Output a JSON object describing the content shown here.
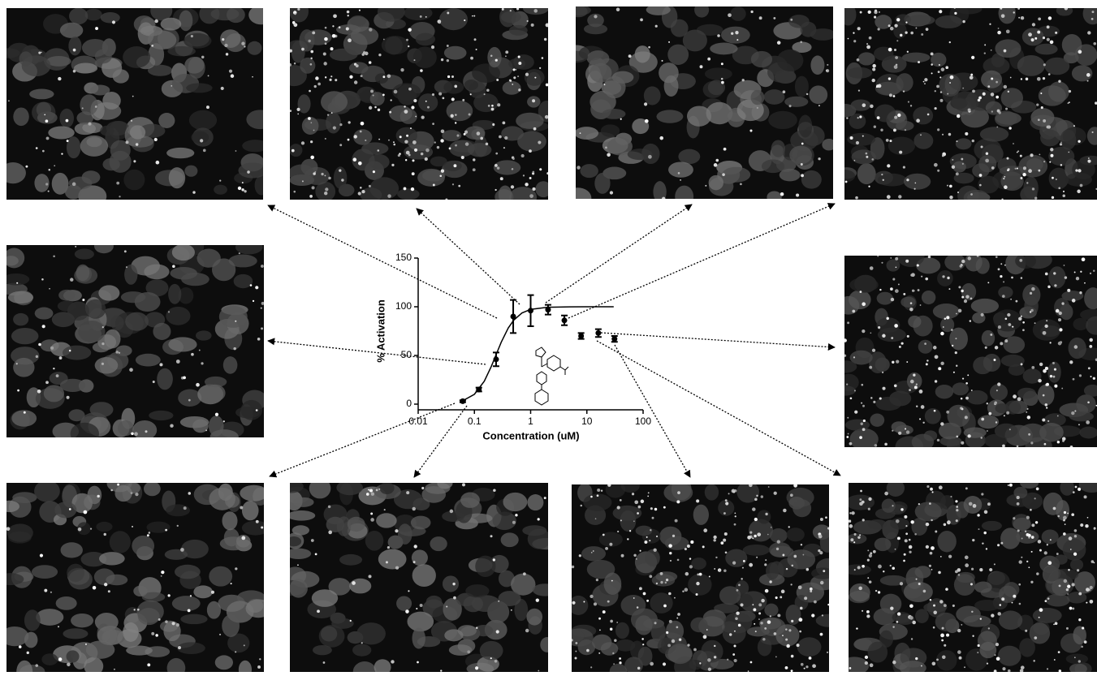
{
  "chart_data": {
    "type": "scatter",
    "x_label": "Concentration (uM)",
    "y_label": "% Activation",
    "xscale": "log",
    "xlim": [
      0.01,
      100
    ],
    "xticks": [
      0.01,
      0.1,
      1,
      10,
      100
    ],
    "ylim": [
      0,
      150
    ],
    "yticks": [
      0,
      50,
      100,
      150
    ],
    "color": "#000000",
    "points": {
      "x": [
        0.062,
        0.12,
        0.243,
        0.49,
        1,
        2.04,
        3.98,
        7.9,
        16,
        31
      ],
      "y": [
        3,
        15,
        46,
        90,
        96,
        97,
        86,
        70,
        73,
        67
      ],
      "errors": [
        1,
        2,
        7,
        17,
        16,
        5,
        5,
        3,
        4,
        3
      ]
    },
    "fit": {
      "x": [
        0.06,
        0.1,
        0.15,
        0.2,
        0.25,
        0.3,
        0.4,
        0.5,
        0.7,
        1,
        2,
        5,
        10,
        30
      ],
      "y": [
        3.0,
        10.1,
        23.6,
        38.8,
        52.5,
        63.6,
        78.2,
        86.2,
        93.6,
        97.3,
        99.5,
        99.9,
        100,
        100
      ]
    }
  }
}
